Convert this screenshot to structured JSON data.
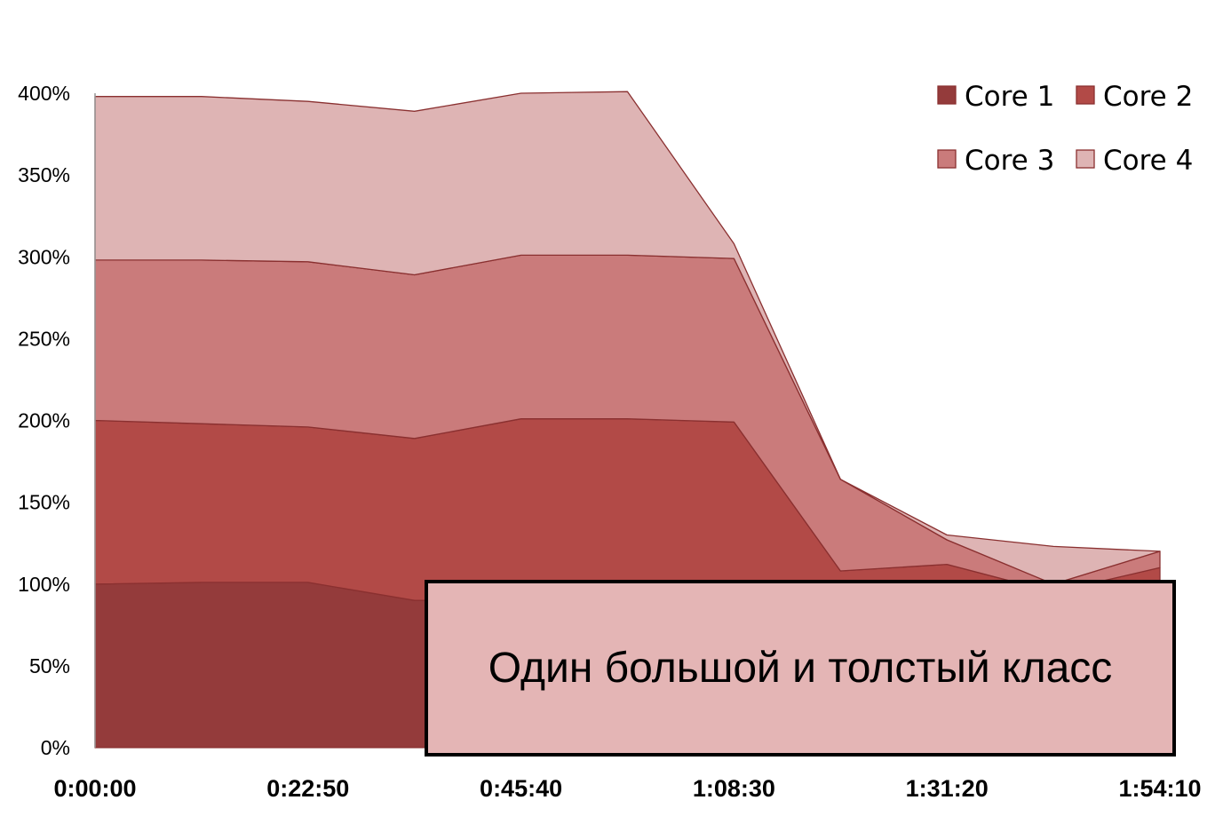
{
  "chart_data": {
    "type": "area",
    "stacked": true,
    "x": [
      "0:00:00",
      "0:11:25",
      "0:22:50",
      "0:34:15",
      "0:45:40",
      "0:57:05",
      "1:08:30",
      "1:19:55",
      "1:31:20",
      "1:42:45",
      "1:54:10"
    ],
    "x_tick_labels": [
      "0:00:00",
      "0:22:50",
      "0:45:40",
      "1:08:30",
      "1:31:20",
      "1:54:10"
    ],
    "y_tick_labels": [
      "0%",
      "50%",
      "100%",
      "150%",
      "200%",
      "250%",
      "300%",
      "350%",
      "400%"
    ],
    "ylim": [
      0,
      400
    ],
    "series": [
      {
        "name": "Core 1",
        "color": "#943b3b",
        "values": [
          100,
          101,
          101,
          90,
          90,
          90,
          90,
          60,
          50,
          45,
          45
        ]
      },
      {
        "name": "Core 2",
        "color": "#b24a47",
        "values": [
          100,
          97,
          95,
          99,
          111,
          111,
          109,
          48,
          62,
          50,
          65
        ]
      },
      {
        "name": "Core 3",
        "color": "#ca7b7b",
        "values": [
          98,
          100,
          101,
          100,
          100,
          100,
          100,
          56,
          15,
          5,
          10
        ]
      },
      {
        "name": "Core 4",
        "color": "#deb4b4",
        "values": [
          100,
          100,
          98,
          100,
          99,
          100,
          9,
          0,
          3,
          23,
          0
        ]
      }
    ],
    "line_color": "#8a3030",
    "legend_position": "top-right",
    "grid": false
  },
  "callout": {
    "text": "Один большой и толстый класс"
  }
}
